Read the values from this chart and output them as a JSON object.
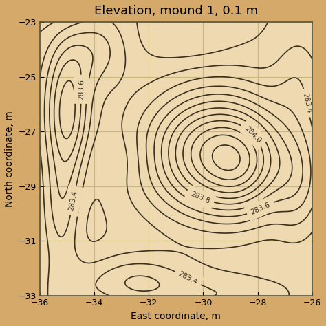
{
  "title": "Elevation, mound 1, 0.1 m",
  "xlabel": "East coordinate, m",
  "ylabel": "North coordinate, m",
  "xlim": [
    -36,
    -26
  ],
  "ylim": [
    -33,
    -23
  ],
  "xticks": [
    -36,
    -34,
    -32,
    -30,
    -28,
    -26
  ],
  "yticks": [
    -33,
    -31,
    -29,
    -27,
    -25,
    -23
  ],
  "background_color": "#efd9b0",
  "figure_bg": "#d4a96a",
  "contour_color": "#3a3020",
  "grid_color": "#c8b87a",
  "label_levels": [
    283.4,
    283.6,
    283.8,
    284.0
  ],
  "contour_linewidth": 1.2,
  "title_fontsize": 13,
  "label_fontsize": 7.5
}
